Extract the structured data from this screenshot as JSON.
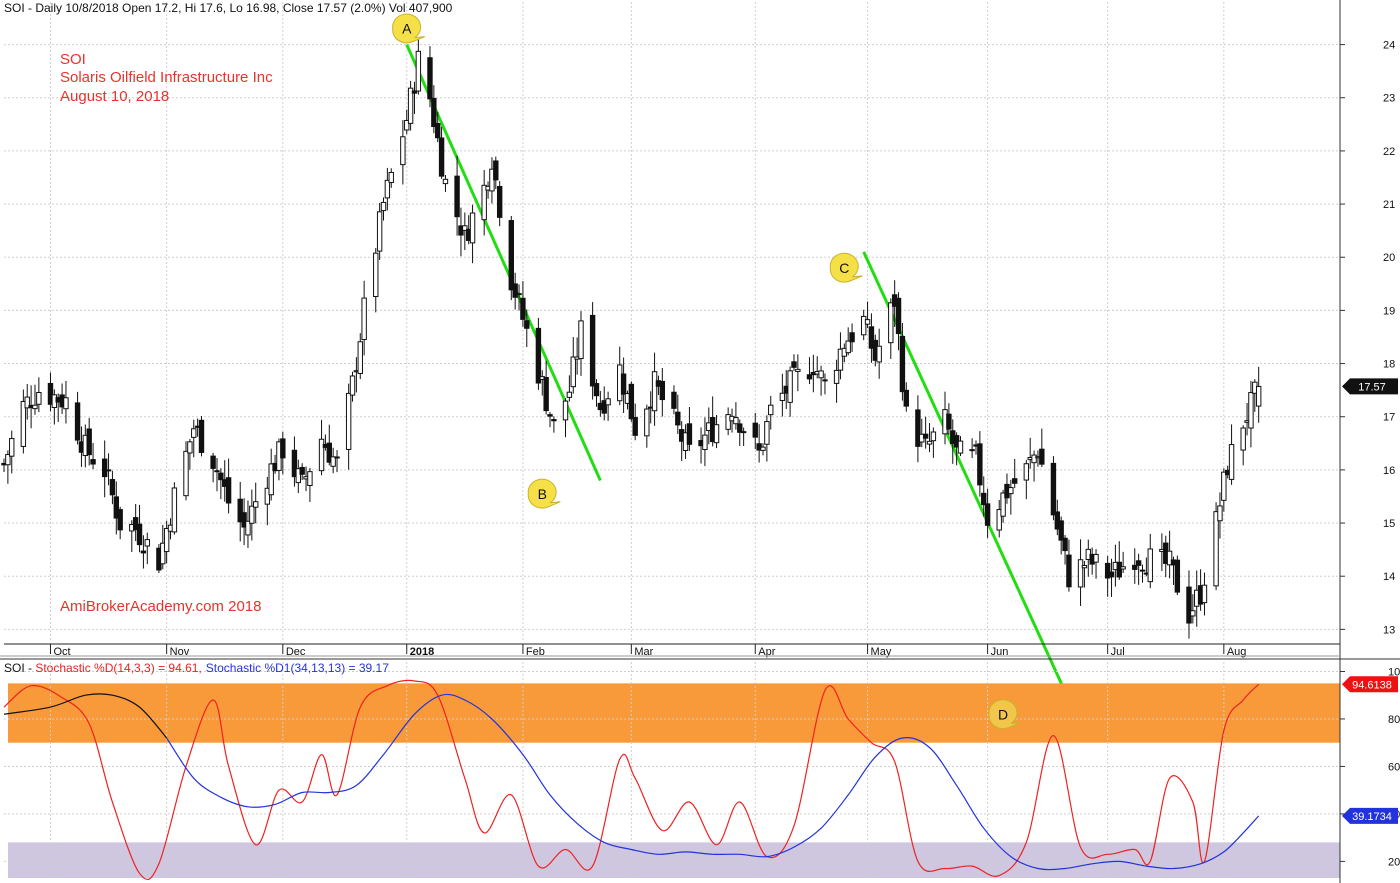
{
  "header": {
    "main": "SOI - Daily 10/8/2018 Open 17.2, Hi 17.6, Lo 16.98, Close 17.57 (2.0%) Vol 407,900",
    "indicator_prefix": "SOI - ",
    "indicator_d": "Stochastic %D(14,3,3) = 94.61,",
    "indicator_d1": "Stochastic %D1(34,13,13) = 39.17"
  },
  "annotations": {
    "ticker": "SOI",
    "company": "Solaris Oilfield Infrastructure Inc",
    "date": "August 10, 2018",
    "watermark": "AmiBrokerAcademy.com  2018"
  },
  "colors": {
    "candle": "#111111",
    "trendline": "#22dd11",
    "stoch_d": "#ee2222",
    "stoch_d1": "#2233dd",
    "overbought_zone": "#f89a3a",
    "oversold_zone": "#cfc6e0",
    "label_text": "#e8332d",
    "callout": "#f5e048",
    "price_badge": "#111111",
    "d_badge": "#ee1111",
    "d1_badge": "#2233dd"
  },
  "markers": [
    {
      "label": "A",
      "date": "2018-01-02",
      "price": 24.3
    },
    {
      "label": "B",
      "date": "2018-02-06",
      "price": 15.55
    },
    {
      "label": "C",
      "date": "2018-04-25",
      "price": 19.8
    },
    {
      "label": "D",
      "date": "2018-06-05",
      "osc": 87
    }
  ],
  "chart_data": [
    {
      "type": "candlestick",
      "title": "SOI - Daily",
      "ylim": [
        12.8,
        24.5
      ],
      "yticks": [
        13,
        14,
        15,
        16,
        17,
        18,
        19,
        20,
        21,
        22,
        23,
        24
      ],
      "xlim": [
        "2017-09-20",
        "2018-08-31"
      ],
      "xticks": [
        {
          "date": "2017-10-02",
          "label": "Oct"
        },
        {
          "date": "2017-11-01",
          "label": "Nov"
        },
        {
          "date": "2017-12-01",
          "label": "Dec"
        },
        {
          "date": "2018-01-02",
          "label": "2018"
        },
        {
          "date": "2018-02-01",
          "label": "Feb"
        },
        {
          "date": "2018-03-01",
          "label": "Mar"
        },
        {
          "date": "2018-04-02",
          "label": "Apr"
        },
        {
          "date": "2018-05-01",
          "label": "May"
        },
        {
          "date": "2018-06-01",
          "label": "Jun"
        },
        {
          "date": "2018-07-02",
          "label": "Jul"
        },
        {
          "date": "2018-08-01",
          "label": "Aug"
        }
      ],
      "last_price": "17.57",
      "grid": true,
      "close_path": [
        [
          "2017-09-20",
          16.1
        ],
        [
          "2017-09-25",
          17.2
        ],
        [
          "2017-09-29",
          17.5
        ],
        [
          "2017-10-06",
          17.3
        ],
        [
          "2017-10-11",
          16.4
        ],
        [
          "2017-10-16",
          16.0
        ],
        [
          "2017-10-20",
          15.0
        ],
        [
          "2017-10-24",
          14.9
        ],
        [
          "2017-10-30",
          14.3
        ],
        [
          "2017-11-03",
          15.5
        ],
        [
          "2017-11-08",
          16.8
        ],
        [
          "2017-11-13",
          16.2
        ],
        [
          "2017-11-17",
          15.4
        ],
        [
          "2017-11-21",
          14.9
        ],
        [
          "2017-11-27",
          15.9
        ],
        [
          "2017-12-01",
          16.4
        ],
        [
          "2017-12-06",
          15.7
        ],
        [
          "2017-12-11",
          16.6
        ],
        [
          "2017-12-15",
          16.1
        ],
        [
          "2017-12-19",
          17.6
        ],
        [
          "2017-12-22",
          19.0
        ],
        [
          "2017-12-27",
          21.0
        ],
        [
          "2018-01-02",
          22.6
        ],
        [
          "2018-01-05",
          23.7
        ],
        [
          "2018-01-08",
          23.0
        ],
        [
          "2018-01-12",
          21.4
        ],
        [
          "2018-01-17",
          20.4
        ],
        [
          "2018-01-22",
          21.3
        ],
        [
          "2018-01-24",
          21.9
        ],
        [
          "2018-01-29",
          19.6
        ],
        [
          "2018-02-02",
          18.6
        ],
        [
          "2018-02-06",
          17.6
        ],
        [
          "2018-02-09",
          16.8
        ],
        [
          "2018-02-13",
          17.5
        ],
        [
          "2018-02-16",
          18.6
        ],
        [
          "2018-02-21",
          17.2
        ],
        [
          "2018-02-26",
          17.9
        ],
        [
          "2018-03-02",
          16.8
        ],
        [
          "2018-03-07",
          17.6
        ],
        [
          "2018-03-12",
          16.9
        ],
        [
          "2018-03-16",
          16.3
        ],
        [
          "2018-03-21",
          16.7
        ],
        [
          "2018-03-27",
          17.2
        ],
        [
          "2018-04-03",
          16.3
        ],
        [
          "2018-04-06",
          17.1
        ],
        [
          "2018-04-11",
          17.6
        ],
        [
          "2018-04-17",
          18.0
        ],
        [
          "2018-04-20",
          17.6
        ],
        [
          "2018-04-25",
          18.4
        ],
        [
          "2018-04-30",
          18.8
        ],
        [
          "2018-05-03",
          18.1
        ],
        [
          "2018-05-08",
          19.2
        ],
        [
          "2018-05-11",
          17.0
        ],
        [
          "2018-05-16",
          16.4
        ],
        [
          "2018-05-21",
          16.9
        ],
        [
          "2018-05-24",
          16.3
        ],
        [
          "2018-05-29",
          16.2
        ],
        [
          "2018-06-01",
          15.1
        ],
        [
          "2018-06-06",
          15.6
        ],
        [
          "2018-06-11",
          16.0
        ],
        [
          "2018-06-14",
          16.4
        ],
        [
          "2018-06-19",
          14.9
        ],
        [
          "2018-06-22",
          14.0
        ],
        [
          "2018-06-27",
          14.3
        ],
        [
          "2018-07-03",
          14.0
        ],
        [
          "2018-07-09",
          14.4
        ],
        [
          "2018-07-13",
          14.3
        ],
        [
          "2018-07-18",
          14.2
        ],
        [
          "2018-07-23",
          13.3
        ],
        [
          "2018-07-26",
          13.7
        ],
        [
          "2018-07-30",
          15.0
        ],
        [
          "2018-08-02",
          16.1
        ],
        [
          "2018-08-06",
          16.9
        ],
        [
          "2018-08-08",
          17.2
        ],
        [
          "2018-08-10",
          17.57
        ]
      ],
      "trendlines": [
        {
          "from": [
            "2018-01-02",
            24.0
          ],
          "to": [
            "2018-02-21",
            15.8
          ]
        },
        {
          "from": [
            "2018-04-30",
            20.1
          ],
          "to": [
            "2018-06-22",
            12.5
          ]
        }
      ]
    },
    {
      "type": "line",
      "ylim": [
        13,
        104
      ],
      "yticks": [
        20,
        40,
        60,
        80,
        100
      ],
      "grid": true,
      "zones": [
        {
          "name": "overbought",
          "from": 70,
          "to": 95
        },
        {
          "name": "oversold",
          "from": 13,
          "to": 28
        }
      ],
      "series": [
        {
          "name": "Stochastic %D(14,3,3)",
          "color": "#ee2222",
          "last": "94.6138",
          "points": [
            [
              "2017-09-20",
              85
            ],
            [
              "2017-09-27",
              94
            ],
            [
              "2017-10-05",
              89
            ],
            [
              "2017-10-12",
              78
            ],
            [
              "2017-10-18",
              45
            ],
            [
              "2017-10-25",
              15
            ],
            [
              "2017-10-30",
              19
            ],
            [
              "2017-11-06",
              60
            ],
            [
              "2017-11-13",
              88
            ],
            [
              "2017-11-17",
              60
            ],
            [
              "2017-11-24",
              27
            ],
            [
              "2017-11-30",
              50
            ],
            [
              "2017-12-06",
              45
            ],
            [
              "2017-12-11",
              65
            ],
            [
              "2017-12-15",
              48
            ],
            [
              "2017-12-21",
              85
            ],
            [
              "2017-12-28",
              94
            ],
            [
              "2018-01-04",
              96
            ],
            [
              "2018-01-10",
              90
            ],
            [
              "2018-01-17",
              55
            ],
            [
              "2018-01-22",
              32
            ],
            [
              "2018-01-29",
              48
            ],
            [
              "2018-02-05",
              18
            ],
            [
              "2018-02-12",
              25
            ],
            [
              "2018-02-19",
              18
            ],
            [
              "2018-02-26",
              63
            ],
            [
              "2018-03-02",
              55
            ],
            [
              "2018-03-09",
              33
            ],
            [
              "2018-03-16",
              45
            ],
            [
              "2018-03-23",
              27
            ],
            [
              "2018-03-29",
              45
            ],
            [
              "2018-04-05",
              22
            ],
            [
              "2018-04-12",
              35
            ],
            [
              "2018-04-20",
              92
            ],
            [
              "2018-04-26",
              80
            ],
            [
              "2018-05-02",
              70
            ],
            [
              "2018-05-08",
              62
            ],
            [
              "2018-05-14",
              20
            ],
            [
              "2018-05-21",
              17
            ],
            [
              "2018-05-28",
              18
            ],
            [
              "2018-06-04",
              14
            ],
            [
              "2018-06-11",
              28
            ],
            [
              "2018-06-18",
              73
            ],
            [
              "2018-06-25",
              26
            ],
            [
              "2018-07-02",
              23
            ],
            [
              "2018-07-09",
              25
            ],
            [
              "2018-07-13",
              20
            ],
            [
              "2018-07-18",
              55
            ],
            [
              "2018-07-24",
              45
            ],
            [
              "2018-07-27",
              20
            ],
            [
              "2018-08-01",
              75
            ],
            [
              "2018-08-06",
              88
            ],
            [
              "2018-08-10",
              94.61
            ]
          ]
        },
        {
          "name": "Stochastic %D1(34,13,13)",
          "color": "#2233dd",
          "last": "39.1734",
          "points": [
            [
              "2017-09-20",
              82
            ],
            [
              "2017-10-02",
              85
            ],
            [
              "2017-10-11",
              90
            ],
            [
              "2017-10-18",
              90
            ],
            [
              "2017-10-25",
              85
            ],
            [
              "2017-11-01",
              72
            ],
            [
              "2017-11-08",
              55
            ],
            [
              "2017-11-15",
              47
            ],
            [
              "2017-11-22",
              43
            ],
            [
              "2017-11-29",
              44
            ],
            [
              "2017-12-06",
              49
            ],
            [
              "2017-12-13",
              49
            ],
            [
              "2017-12-20",
              52
            ],
            [
              "2017-12-27",
              65
            ],
            [
              "2018-01-04",
              82
            ],
            [
              "2018-01-11",
              90
            ],
            [
              "2018-01-17",
              88
            ],
            [
              "2018-01-24",
              80
            ],
            [
              "2018-02-01",
              65
            ],
            [
              "2018-02-08",
              48
            ],
            [
              "2018-02-15",
              36
            ],
            [
              "2018-02-22",
              28
            ],
            [
              "2018-03-01",
              25
            ],
            [
              "2018-03-08",
              23
            ],
            [
              "2018-03-15",
              24
            ],
            [
              "2018-03-22",
              23
            ],
            [
              "2018-03-29",
              23
            ],
            [
              "2018-04-05",
              22
            ],
            [
              "2018-04-12",
              26
            ],
            [
              "2018-04-19",
              34
            ],
            [
              "2018-04-26",
              48
            ],
            [
              "2018-05-03",
              64
            ],
            [
              "2018-05-10",
              72
            ],
            [
              "2018-05-17",
              68
            ],
            [
              "2018-05-24",
              52
            ],
            [
              "2018-05-31",
              34
            ],
            [
              "2018-06-07",
              22
            ],
            [
              "2018-06-14",
              17
            ],
            [
              "2018-06-21",
              17
            ],
            [
              "2018-06-28",
              19
            ],
            [
              "2018-07-05",
              20
            ],
            [
              "2018-07-12",
              18
            ],
            [
              "2018-07-19",
              17
            ],
            [
              "2018-07-26",
              19
            ],
            [
              "2018-08-01",
              24
            ],
            [
              "2018-08-06",
              32
            ],
            [
              "2018-08-10",
              39.17
            ]
          ]
        }
      ]
    }
  ]
}
